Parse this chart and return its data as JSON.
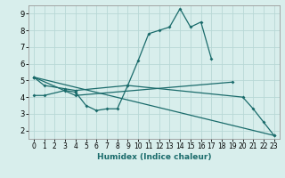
{
  "xlabel": "Humidex (Indice chaleur)",
  "bg_color": "#d8eeec",
  "grid_color": "#b8d8d6",
  "line_color": "#1a6b6b",
  "xlim": [
    -0.5,
    23.5
  ],
  "ylim": [
    1.5,
    9.5
  ],
  "xticks": [
    0,
    1,
    2,
    3,
    4,
    5,
    6,
    7,
    8,
    9,
    10,
    11,
    12,
    13,
    14,
    15,
    16,
    17,
    18,
    19,
    20,
    21,
    22,
    23
  ],
  "yticks": [
    2,
    3,
    4,
    5,
    6,
    7,
    8,
    9
  ],
  "series": [
    {
      "x": [
        0,
        1,
        3,
        4,
        9,
        10,
        11,
        12,
        13,
        14,
        15,
        16,
        17
      ],
      "y": [
        5.2,
        4.7,
        4.5,
        4.4,
        4.7,
        6.2,
        7.8,
        8.0,
        8.2,
        9.3,
        8.2,
        8.5,
        6.3
      ]
    },
    {
      "x": [
        0,
        4,
        19
      ],
      "y": [
        5.2,
        4.1,
        4.9
      ]
    },
    {
      "x": [
        0,
        1,
        3,
        4,
        5,
        6,
        7,
        8,
        9,
        20,
        21,
        22,
        23
      ],
      "y": [
        4.1,
        4.1,
        4.4,
        4.3,
        3.5,
        3.2,
        3.3,
        3.3,
        4.7,
        4.0,
        3.3,
        2.5,
        1.7
      ]
    },
    {
      "x": [
        0,
        23
      ],
      "y": [
        5.2,
        1.7
      ]
    }
  ]
}
